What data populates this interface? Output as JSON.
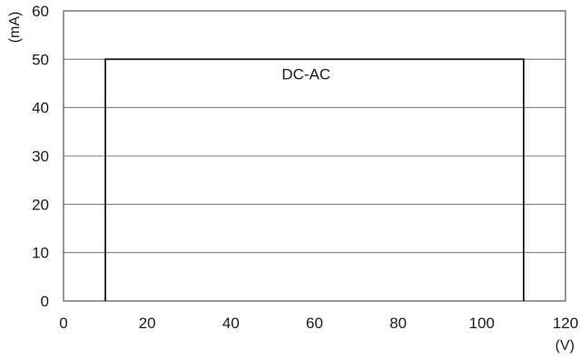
{
  "chart_data": {
    "type": "line",
    "title": "",
    "xlabel": "(V)",
    "ylabel": "(mA)",
    "xlim": [
      0,
      120
    ],
    "ylim": [
      0,
      60
    ],
    "xticks": [
      0,
      20,
      40,
      60,
      80,
      100,
      120
    ],
    "yticks": [
      0,
      10,
      20,
      30,
      40,
      50,
      60
    ],
    "grid": {
      "horizontal": true,
      "vertical": false
    },
    "legend": "none",
    "annotations": [
      {
        "text": "DC-AC",
        "x": 58,
        "y": 45.8
      }
    ],
    "series": [
      {
        "x": [
          10,
          10,
          110,
          110
        ],
        "y": [
          0,
          50,
          50,
          0
        ],
        "color": "#1a1a1a"
      }
    ]
  }
}
